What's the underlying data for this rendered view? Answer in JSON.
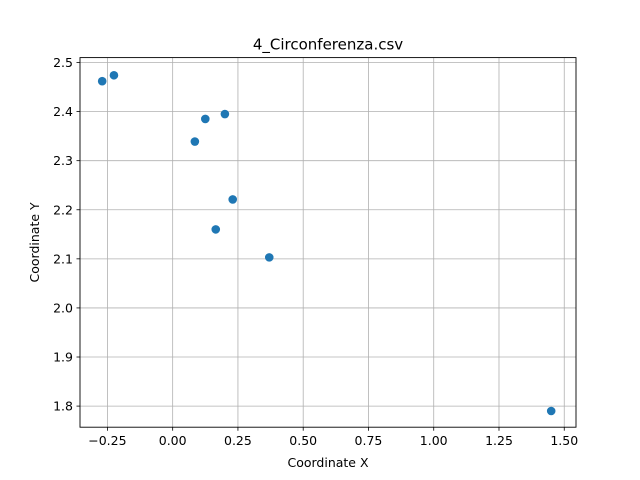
{
  "chart_data": {
    "type": "scatter",
    "title": "4_Circonferenza.csv",
    "xlabel": "Coordinate X",
    "ylabel": "Coordinate Y",
    "xlim": [
      -0.355,
      1.545
    ],
    "ylim": [
      1.757,
      2.51
    ],
    "xticks": [
      -0.25,
      0.0,
      0.25,
      0.5,
      0.75,
      1.0,
      1.25,
      1.5
    ],
    "xtick_labels": [
      "−0.25",
      "0.00",
      "0.25",
      "0.50",
      "0.75",
      "1.00",
      "1.25",
      "1.50"
    ],
    "yticks": [
      1.8,
      1.9,
      2.0,
      2.1,
      2.2,
      2.3,
      2.4,
      2.5
    ],
    "ytick_labels": [
      "1.8",
      "1.9",
      "2.0",
      "2.1",
      "2.2",
      "2.3",
      "2.4",
      "2.5"
    ],
    "grid": true,
    "marker_color": "#1f77b4",
    "grid_color": "#b0b0b0",
    "points": [
      {
        "x": -0.27,
        "y": 2.462
      },
      {
        "x": -0.225,
        "y": 2.474
      },
      {
        "x": 0.085,
        "y": 2.339
      },
      {
        "x": 0.125,
        "y": 2.385
      },
      {
        "x": 0.2,
        "y": 2.395
      },
      {
        "x": 0.165,
        "y": 2.16
      },
      {
        "x": 0.23,
        "y": 2.221
      },
      {
        "x": 0.37,
        "y": 2.103
      },
      {
        "x": 1.45,
        "y": 1.79
      }
    ]
  }
}
